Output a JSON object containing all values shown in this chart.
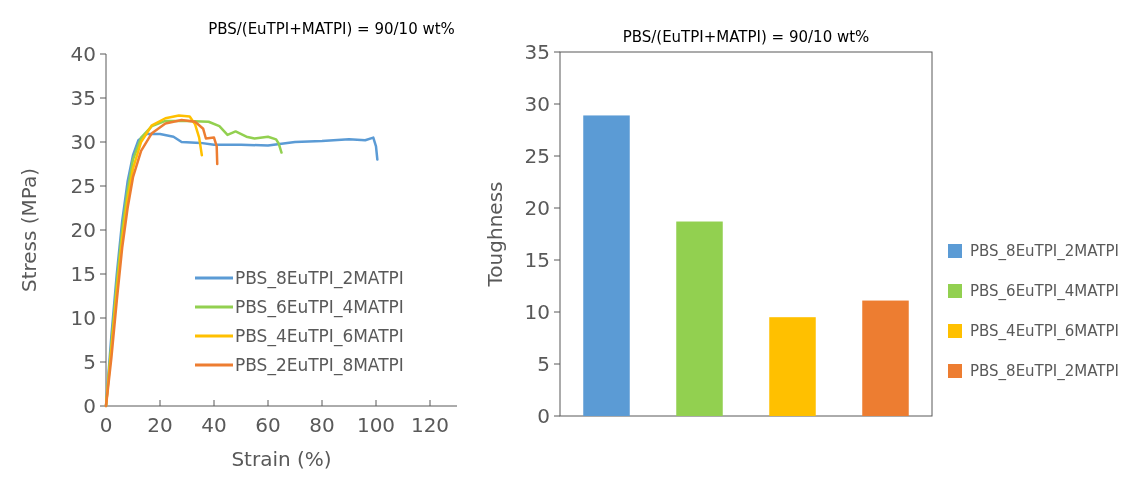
{
  "chart_data": [
    {
      "type": "line",
      "title": "PBS/(EuTPI+MATPI) = 90/10 wt%",
      "xlabel": "Strain (%)",
      "ylabel": "Stress (MPa)",
      "xlim": [
        0,
        130
      ],
      "xticks": [
        0,
        20,
        40,
        60,
        80,
        100,
        120
      ],
      "ylim": [
        0,
        40
      ],
      "yticks": [
        0,
        5,
        10,
        15,
        20,
        25,
        30,
        35,
        40
      ],
      "grid": false,
      "legend": "bottom right",
      "series": [
        {
          "name": "PBS_8EuTPI_2MATPI",
          "color": "#5b9bd5",
          "x": [
            0,
            2,
            4,
            6,
            8,
            10,
            12,
            15,
            20,
            25,
            28,
            35,
            40,
            50,
            60,
            70,
            80,
            90,
            96,
            99,
            100,
            100.5
          ],
          "values": [
            0,
            8,
            15,
            21,
            25.5,
            28.5,
            30.2,
            30.9,
            30.9,
            30.6,
            30,
            29.9,
            29.7,
            29.7,
            29.6,
            30,
            30.1,
            30.3,
            30.2,
            30.5,
            29.5,
            28
          ]
        },
        {
          "name": "PBS_6EuTPI_4MATPI",
          "color": "#92d050",
          "x": [
            0,
            2,
            4,
            6,
            8,
            10,
            13,
            17,
            22,
            30,
            38,
            42,
            45,
            48,
            52,
            55,
            60,
            63,
            64,
            65
          ],
          "values": [
            0,
            7,
            14,
            20,
            24.5,
            28,
            30.5,
            31.8,
            32.4,
            32.4,
            32.3,
            31.8,
            30.8,
            31.2,
            30.6,
            30.4,
            30.6,
            30.3,
            29.8,
            28.8
          ]
        },
        {
          "name": "PBS_4EuTPI_6MATPI",
          "color": "#ffc000",
          "x": [
            0,
            2,
            4,
            6,
            8,
            10,
            13,
            17,
            22,
            27,
            31,
            33,
            34.5,
            35.5
          ],
          "values": [
            0,
            6.5,
            13,
            19,
            23.5,
            27,
            30,
            31.9,
            32.7,
            33,
            32.9,
            32,
            30.5,
            28.5
          ]
        },
        {
          "name": "PBS_2EuTPI_8MATPI",
          "color": "#ed7d31",
          "x": [
            0,
            2,
            4,
            6,
            8,
            10,
            13,
            17,
            22,
            28,
            33,
            36,
            37,
            40,
            41,
            41.2
          ],
          "values": [
            0,
            5.5,
            12,
            18,
            22.5,
            26,
            29,
            31,
            32.1,
            32.5,
            32.3,
            31.5,
            30.4,
            30.5,
            29.5,
            27.5
          ]
        }
      ]
    },
    {
      "type": "bar",
      "title": "PBS/(EuTPI+MATPI) = 90/10 wt%",
      "ylabel": "Toughness",
      "categories": [
        null,
        null,
        null,
        null
      ],
      "stacked": true,
      "ylim": [
        0,
        35
      ],
      "yticks": [
        0,
        5,
        10,
        15,
        20,
        25,
        30,
        35
      ],
      "grid": false,
      "legend": "right",
      "series": [
        {
          "name": "PBS_8EuTPI_2MATPI",
          "color": "#5b9bd5",
          "values": [
            28.9,
            null,
            null,
            null
          ]
        },
        {
          "name": "PBS_6EuTPI_4MATPI",
          "color": "#92d050",
          "values": [
            null,
            18.7,
            null,
            null
          ]
        },
        {
          "name": "PBS_4EuTPI_6MATPI",
          "color": "#ffc000",
          "values": [
            null,
            null,
            9.5,
            null
          ]
        },
        {
          "name": "PBS_8EuTPI_2MATPI",
          "color": "#ed7d31",
          "values": [
            null,
            null,
            null,
            11.1
          ]
        }
      ]
    }
  ]
}
